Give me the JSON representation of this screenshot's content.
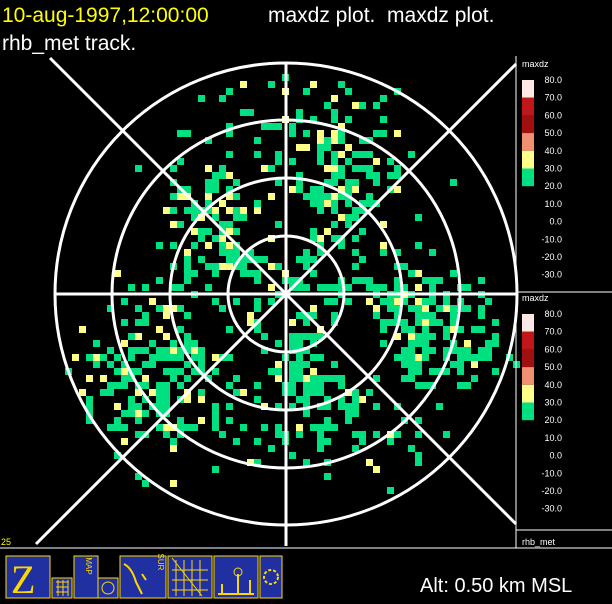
{
  "header": {
    "timestamp": "10-aug-1997,12:00:00",
    "title": "maxdz plot.  maxdz plot.",
    "subtitle": "rhb_met track."
  },
  "colorbars": [
    {
      "title": "maxdz",
      "labels": [
        "80.0",
        "70.0",
        "60.0",
        "50.0",
        "40.0",
        "30.0",
        "20.0",
        "10.0",
        "0.0",
        "-10.0",
        "-20.0",
        "-30.0"
      ],
      "colors": [
        "#ffe8e8",
        "#c01818",
        "#a01010",
        "#f09070",
        "#ffff88",
        "#00e080"
      ]
    },
    {
      "title": "maxdz",
      "labels": [
        "80.0",
        "70.0",
        "60.0",
        "50.0",
        "40.0",
        "30.0",
        "20.0",
        "10.0",
        "0.0",
        "-10.0",
        "-20.0",
        "-30.0"
      ],
      "colors": [
        "#ffe8e8",
        "#c01818",
        "#a01010",
        "#f09070",
        "#ffff88",
        "#00e080"
      ]
    }
  ],
  "track_label": "rhb_met",
  "corner_label": "25",
  "toolbar": [
    {
      "label": "MAP"
    },
    {
      "label": "SUR"
    }
  ],
  "altitude": "Alt: 0.50 km MSL"
}
